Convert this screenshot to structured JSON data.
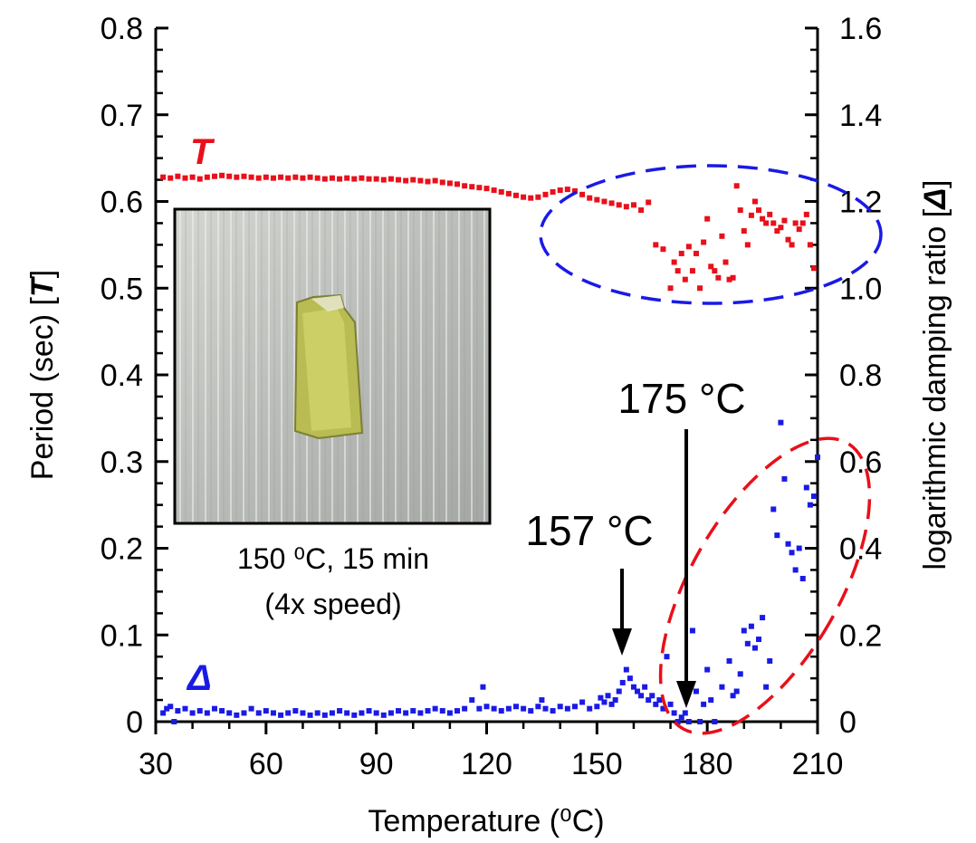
{
  "chart_data": {
    "type": "scatter",
    "x_axis": {
      "label": "Temperature (⁰C)",
      "range": [
        30,
        210
      ],
      "ticks": [
        30,
        60,
        90,
        120,
        150,
        180,
        210
      ],
      "tick_labels": [
        "30",
        "60",
        "90",
        "120",
        "150",
        "180",
        "210"
      ]
    },
    "y_axis_left": {
      "label_prefix": "Period (sec) [",
      "label_symbol": "T",
      "label_suffix": "]",
      "range": [
        0,
        0.8
      ],
      "ticks": [
        0,
        0.1,
        0.2,
        0.3,
        0.4,
        0.5,
        0.6,
        0.7,
        0.8
      ],
      "tick_labels": [
        "0",
        "0.1",
        "0.2",
        "0.3",
        "0.4",
        "0.5",
        "0.6",
        "0.7",
        "0.8"
      ]
    },
    "y_axis_right": {
      "label_prefix": "logarithmic damping ratio [",
      "label_symbol": "Δ",
      "label_suffix": "]",
      "range": [
        0,
        1.6
      ],
      "ticks": [
        0,
        0.2,
        0.4,
        0.6,
        0.8,
        1.0,
        1.2,
        1.4,
        1.6
      ],
      "tick_labels": [
        "0",
        "0.2",
        "0.4",
        "0.6",
        "0.8",
        "1.0",
        "1.2",
        "1.4",
        "1.6"
      ]
    },
    "series": [
      {
        "name": "T",
        "axis": "left",
        "color": "#e8101a",
        "points": [
          [
            32,
            0.628
          ],
          [
            34,
            0.627
          ],
          [
            36,
            0.629
          ],
          [
            38,
            0.627
          ],
          [
            40,
            0.628
          ],
          [
            42,
            0.626
          ],
          [
            44,
            0.628
          ],
          [
            46,
            0.629
          ],
          [
            48,
            0.63
          ],
          [
            50,
            0.629
          ],
          [
            52,
            0.628
          ],
          [
            54,
            0.629
          ],
          [
            56,
            0.628
          ],
          [
            58,
            0.627
          ],
          [
            60,
            0.628
          ],
          [
            62,
            0.627
          ],
          [
            64,
            0.628
          ],
          [
            66,
            0.627
          ],
          [
            68,
            0.628
          ],
          [
            70,
            0.627
          ],
          [
            72,
            0.628
          ],
          [
            74,
            0.627
          ],
          [
            76,
            0.626
          ],
          [
            78,
            0.627
          ],
          [
            80,
            0.626
          ],
          [
            82,
            0.627
          ],
          [
            84,
            0.626
          ],
          [
            86,
            0.627
          ],
          [
            88,
            0.626
          ],
          [
            90,
            0.626
          ],
          [
            92,
            0.625
          ],
          [
            94,
            0.626
          ],
          [
            96,
            0.625
          ],
          [
            98,
            0.624
          ],
          [
            100,
            0.625
          ],
          [
            102,
            0.624
          ],
          [
            104,
            0.623
          ],
          [
            106,
            0.624
          ],
          [
            108,
            0.622
          ],
          [
            110,
            0.621
          ],
          [
            112,
            0.62
          ],
          [
            114,
            0.618
          ],
          [
            116,
            0.617
          ],
          [
            118,
            0.616
          ],
          [
            120,
            0.615
          ],
          [
            122,
            0.613
          ],
          [
            124,
            0.611
          ],
          [
            126,
            0.609
          ],
          [
            128,
            0.607
          ],
          [
            130,
            0.605
          ],
          [
            132,
            0.604
          ],
          [
            134,
            0.605
          ],
          [
            136,
            0.608
          ],
          [
            138,
            0.611
          ],
          [
            140,
            0.613
          ],
          [
            142,
            0.614
          ],
          [
            144,
            0.612
          ],
          [
            146,
            0.608
          ],
          [
            148,
            0.604
          ],
          [
            150,
            0.602
          ],
          [
            152,
            0.6
          ],
          [
            154,
            0.598
          ],
          [
            156,
            0.596
          ],
          [
            158,
            0.594
          ],
          [
            160,
            0.596
          ],
          [
            162,
            0.59
          ],
          [
            164,
            0.599
          ],
          [
            166,
            0.55
          ],
          [
            168,
            0.545
          ],
          [
            170,
            0.5
          ],
          [
            171,
            0.53
          ],
          [
            172,
            0.52
          ],
          [
            173,
            0.54
          ],
          [
            174,
            0.51
          ],
          [
            175,
            0.548
          ],
          [
            176,
            0.52
          ],
          [
            177,
            0.54
          ],
          [
            178,
            0.5
          ],
          [
            179,
            0.553
          ],
          [
            180,
            0.58
          ],
          [
            181,
            0.525
          ],
          [
            182,
            0.52
          ],
          [
            183,
            0.512
          ],
          [
            184,
            0.56
          ],
          [
            185,
            0.53
          ],
          [
            186,
            0.51
          ],
          [
            187,
            0.512
          ],
          [
            188,
            0.618
          ],
          [
            189,
            0.59
          ],
          [
            190,
            0.566
          ],
          [
            191,
            0.55
          ],
          [
            192,
            0.584
          ],
          [
            193,
            0.6
          ],
          [
            194,
            0.59
          ],
          [
            195,
            0.58
          ],
          [
            196,
            0.575
          ],
          [
            197,
            0.585
          ],
          [
            198,
            0.575
          ],
          [
            199,
            0.566
          ],
          [
            200,
            0.57
          ],
          [
            201,
            0.578
          ],
          [
            202,
            0.556
          ],
          [
            203,
            0.55
          ],
          [
            204,
            0.575
          ],
          [
            205,
            0.568
          ],
          [
            206,
            0.575
          ],
          [
            207,
            0.585
          ],
          [
            208,
            0.55
          ],
          [
            209,
            0.523
          ]
        ]
      },
      {
        "name": "Δ",
        "axis": "right",
        "color": "#1a1ae6",
        "points": [
          [
            32,
            0.02
          ],
          [
            33,
            0.03
          ],
          [
            34,
            0.035
          ],
          [
            35,
            0.0
          ],
          [
            36,
            0.025
          ],
          [
            38,
            0.03
          ],
          [
            40,
            0.02
          ],
          [
            42,
            0.025
          ],
          [
            44,
            0.02
          ],
          [
            46,
            0.03
          ],
          [
            48,
            0.025
          ],
          [
            50,
            0.02
          ],
          [
            52,
            0.015
          ],
          [
            54,
            0.02
          ],
          [
            56,
            0.03
          ],
          [
            58,
            0.02
          ],
          [
            60,
            0.025
          ],
          [
            62,
            0.02
          ],
          [
            64,
            0.015
          ],
          [
            66,
            0.02
          ],
          [
            68,
            0.025
          ],
          [
            70,
            0.02
          ],
          [
            72,
            0.015
          ],
          [
            74,
            0.02
          ],
          [
            76,
            0.015
          ],
          [
            78,
            0.02
          ],
          [
            80,
            0.025
          ],
          [
            82,
            0.02
          ],
          [
            84,
            0.015
          ],
          [
            86,
            0.02
          ],
          [
            88,
            0.025
          ],
          [
            90,
            0.02
          ],
          [
            92,
            0.015
          ],
          [
            94,
            0.02
          ],
          [
            96,
            0.025
          ],
          [
            98,
            0.02
          ],
          [
            100,
            0.025
          ],
          [
            102,
            0.02
          ],
          [
            104,
            0.025
          ],
          [
            106,
            0.03
          ],
          [
            108,
            0.025
          ],
          [
            110,
            0.02
          ],
          [
            112,
            0.025
          ],
          [
            114,
            0.03
          ],
          [
            116,
            0.05
          ],
          [
            118,
            0.03
          ],
          [
            119,
            0.08
          ],
          [
            120,
            0.035
          ],
          [
            122,
            0.03
          ],
          [
            124,
            0.025
          ],
          [
            126,
            0.03
          ],
          [
            128,
            0.035
          ],
          [
            130,
            0.03
          ],
          [
            132,
            0.025
          ],
          [
            134,
            0.035
          ],
          [
            135,
            0.05
          ],
          [
            136,
            0.03
          ],
          [
            138,
            0.025
          ],
          [
            140,
            0.035
          ],
          [
            142,
            0.03
          ],
          [
            144,
            0.035
          ],
          [
            146,
            0.045
          ],
          [
            148,
            0.03
          ],
          [
            150,
            0.035
          ],
          [
            151,
            0.055
          ],
          [
            152,
            0.045
          ],
          [
            153,
            0.06
          ],
          [
            154,
            0.04
          ],
          [
            155,
            0.05
          ],
          [
            156,
            0.07
          ],
          [
            157,
            0.09
          ],
          [
            158,
            0.12
          ],
          [
            159,
            0.1
          ],
          [
            160,
            0.08
          ],
          [
            161,
            0.07
          ],
          [
            162,
            0.06
          ],
          [
            163,
            0.08
          ],
          [
            164,
            0.05
          ],
          [
            165,
            0.06
          ],
          [
            166,
            0.04
          ],
          [
            167,
            0.05
          ],
          [
            168,
            0.03
          ],
          [
            169,
            0.15
          ],
          [
            170,
            0.04
          ],
          [
            171,
            0.02
          ],
          [
            172,
            0.0
          ],
          [
            173,
            0.01
          ],
          [
            174,
            0.02
          ],
          [
            175,
            0.0
          ],
          [
            176,
            0.21
          ],
          [
            177,
            0.07
          ],
          [
            178,
            0.0
          ],
          [
            179,
            0.04
          ],
          [
            180,
            0.12
          ],
          [
            181,
            0.05
          ],
          [
            182,
            0.0
          ],
          [
            184,
            0.08
          ],
          [
            186,
            0.14
          ],
          [
            187,
            0.06
          ],
          [
            188,
            0.07
          ],
          [
            189,
            0.11
          ],
          [
            190,
            0.21
          ],
          [
            191,
            0.18
          ],
          [
            192,
            0.22
          ],
          [
            193,
            0.17
          ],
          [
            194,
            0.19
          ],
          [
            195,
            0.24
          ],
          [
            196,
            0.08
          ],
          [
            197,
            0.14
          ],
          [
            198,
            0.49
          ],
          [
            199,
            0.43
          ],
          [
            200,
            0.69
          ],
          [
            201,
            0.56
          ],
          [
            202,
            0.41
          ],
          [
            203,
            0.39
          ],
          [
            204,
            0.35
          ],
          [
            205,
            0.4
          ],
          [
            206,
            0.33
          ],
          [
            207,
            0.54
          ],
          [
            208,
            0.5
          ],
          [
            209,
            0.52
          ],
          [
            210,
            0.61
          ]
        ]
      }
    ],
    "annotations": {
      "t_label": "T",
      "delta_label": "Δ",
      "arrow_157": {
        "text": "157 °C",
        "x": 157
      },
      "arrow_175": {
        "text": "175 °C",
        "x": 175
      },
      "inset_caption_line1": "150 ⁰C, 15 min",
      "inset_caption_line2": "(4x speed)",
      "blue_ellipse_color": "#1a1ae6",
      "red_ellipse_color": "#e8101a"
    },
    "grid": false,
    "legend": "none"
  }
}
